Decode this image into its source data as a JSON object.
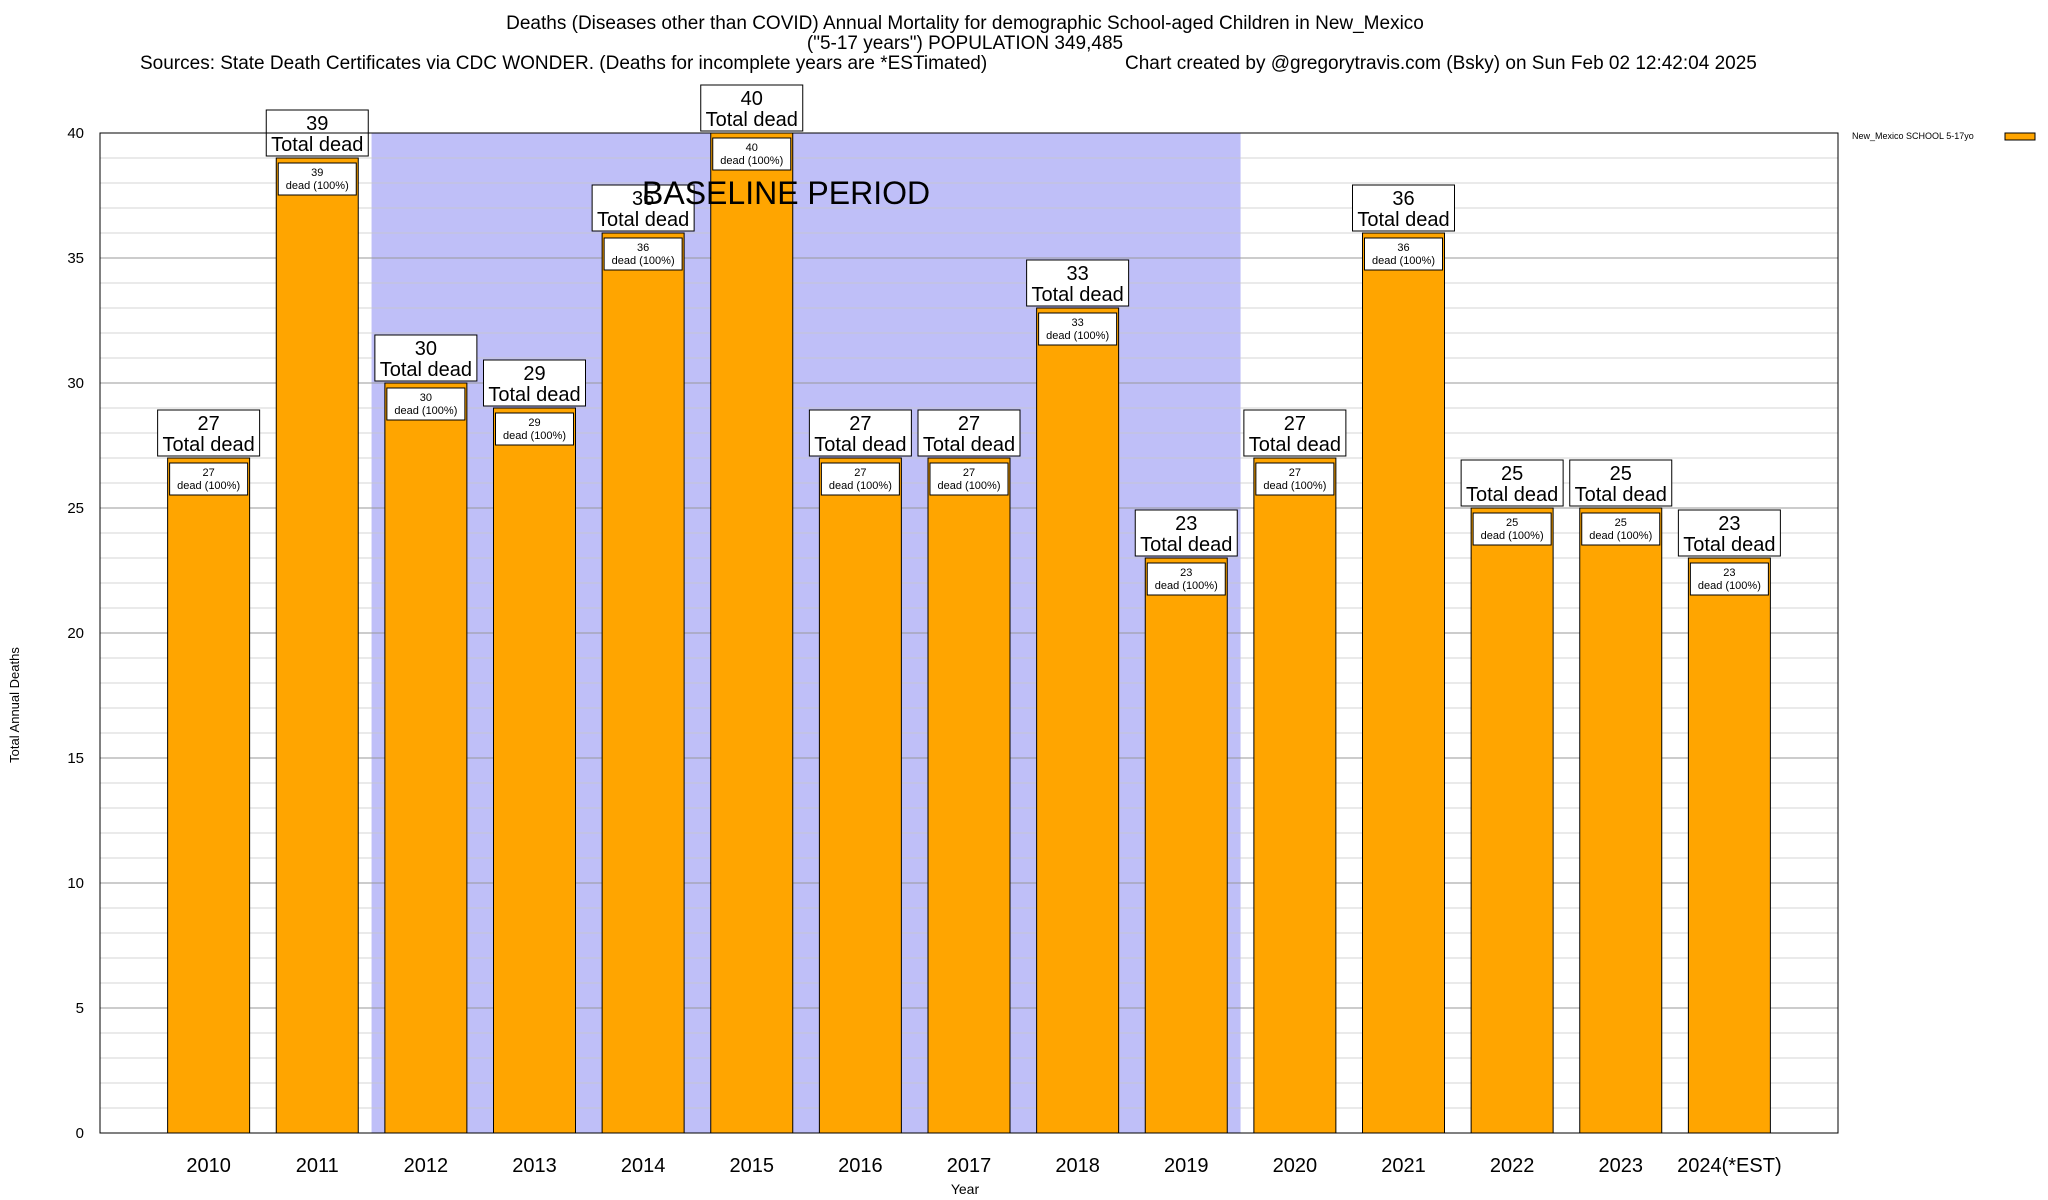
{
  "chart_data": {
    "type": "bar",
    "title": "Deaths (Diseases other than COVID) Annual Mortality for demographic School-aged Children in New_Mexico",
    "subtitle": "(\"5-17 years\") POPULATION 349,485",
    "sources": "Sources: State Death Certificates via CDC WONDER. (Deaths for incomplete years are *ESTimated)",
    "credit": "Chart created by @gregorytravis.com (Bsky) on Sun Feb 02 12:42:04 2025",
    "xlabel": "Year",
    "ylabel": "Total Annual Deaths",
    "categories": [
      "2010",
      "2011",
      "2012",
      "2013",
      "2014",
      "2015",
      "2016",
      "2017",
      "2018",
      "2019",
      "2020",
      "2021",
      "2022",
      "2023",
      "2024(*EST)"
    ],
    "series": [
      {
        "name": "New_Mexico SCHOOL 5-17yo",
        "values": [
          27,
          39,
          30,
          29,
          36,
          40,
          27,
          27,
          33,
          23,
          27,
          36,
          25,
          25,
          23
        ],
        "color": "#ffa500"
      }
    ],
    "bar_labels_total": [
      "27\nTotal dead",
      "39\nTotal dead",
      "30\nTotal dead",
      "29\nTotal dead",
      "36\nTotal dead",
      "40\nTotal dead",
      "27\nTotal dead",
      "27\nTotal dead",
      "33\nTotal dead",
      "23\nTotal dead",
      "27\nTotal dead",
      "36\nTotal dead",
      "25\nTotal dead",
      "25\nTotal dead",
      "23\nTotal dead"
    ],
    "bar_labels_inner": [
      "27\ndead (100%)",
      "39\ndead (100%)",
      "30\ndead (100%)",
      "29\ndead (100%)",
      "36\ndead (100%)",
      "40\ndead (100%)",
      "27\ndead (100%)",
      "27\ndead (100%)",
      "33\ndead (100%)",
      "23\ndead (100%)",
      "27\ndead (100%)",
      "36\ndead (100%)",
      "25\ndead (100%)",
      "25\ndead (100%)",
      "23\ndead (100%)"
    ],
    "baseline_period": {
      "label": "BASELINE PERIOD",
      "from_category": "2012",
      "to_category": "2019",
      "color": "#bfbff8"
    },
    "ylim": [
      0,
      40
    ],
    "yticks": [
      0,
      5,
      10,
      15,
      20,
      25,
      30,
      35,
      40
    ],
    "y_minor_step": 1,
    "grid": true,
    "legend_position": "top-right"
  }
}
